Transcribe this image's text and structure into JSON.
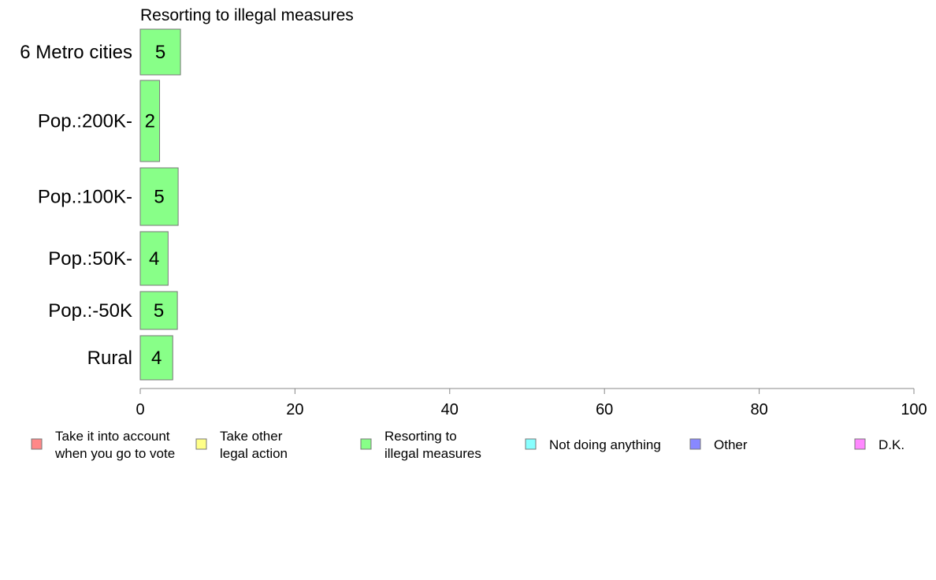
{
  "chart_data": {
    "type": "bar",
    "orientation": "horizontal",
    "title": "Resorting to illegal measures",
    "categories": [
      "6 Metro cities",
      "Pop.:200K-",
      "Pop.:100K-",
      "Pop.:50K-",
      "Pop.:-50K",
      "Rural"
    ],
    "series": [
      {
        "name": "Resorting to illegal measures",
        "values": [
          5.2,
          2.5,
          4.9,
          3.6,
          4.8,
          4.2
        ],
        "labels": [
          "5",
          "2",
          "5",
          "4",
          "5",
          "4"
        ],
        "color": "#88ff88"
      }
    ],
    "xlim": [
      0,
      100
    ],
    "xticks": [
      0,
      20,
      40,
      60,
      80,
      100
    ],
    "xlabel": "",
    "ylabel": "",
    "grid": false,
    "legend_position": "bottom",
    "legend": [
      {
        "lines": [
          "Take it into account",
          "when you go to vote"
        ],
        "color": "#ff8888"
      },
      {
        "lines": [
          "Take other",
          "legal action"
        ],
        "color": "#ffff88"
      },
      {
        "lines": [
          "Resorting to",
          "illegal measures"
        ],
        "color": "#88ff88"
      },
      {
        "lines": [
          "Not doing anything"
        ],
        "color": "#88ffff"
      },
      {
        "lines": [
          "Other"
        ],
        "color": "#8888ff"
      },
      {
        "lines": [
          "D.K."
        ],
        "color": "#ff88ff"
      }
    ]
  }
}
